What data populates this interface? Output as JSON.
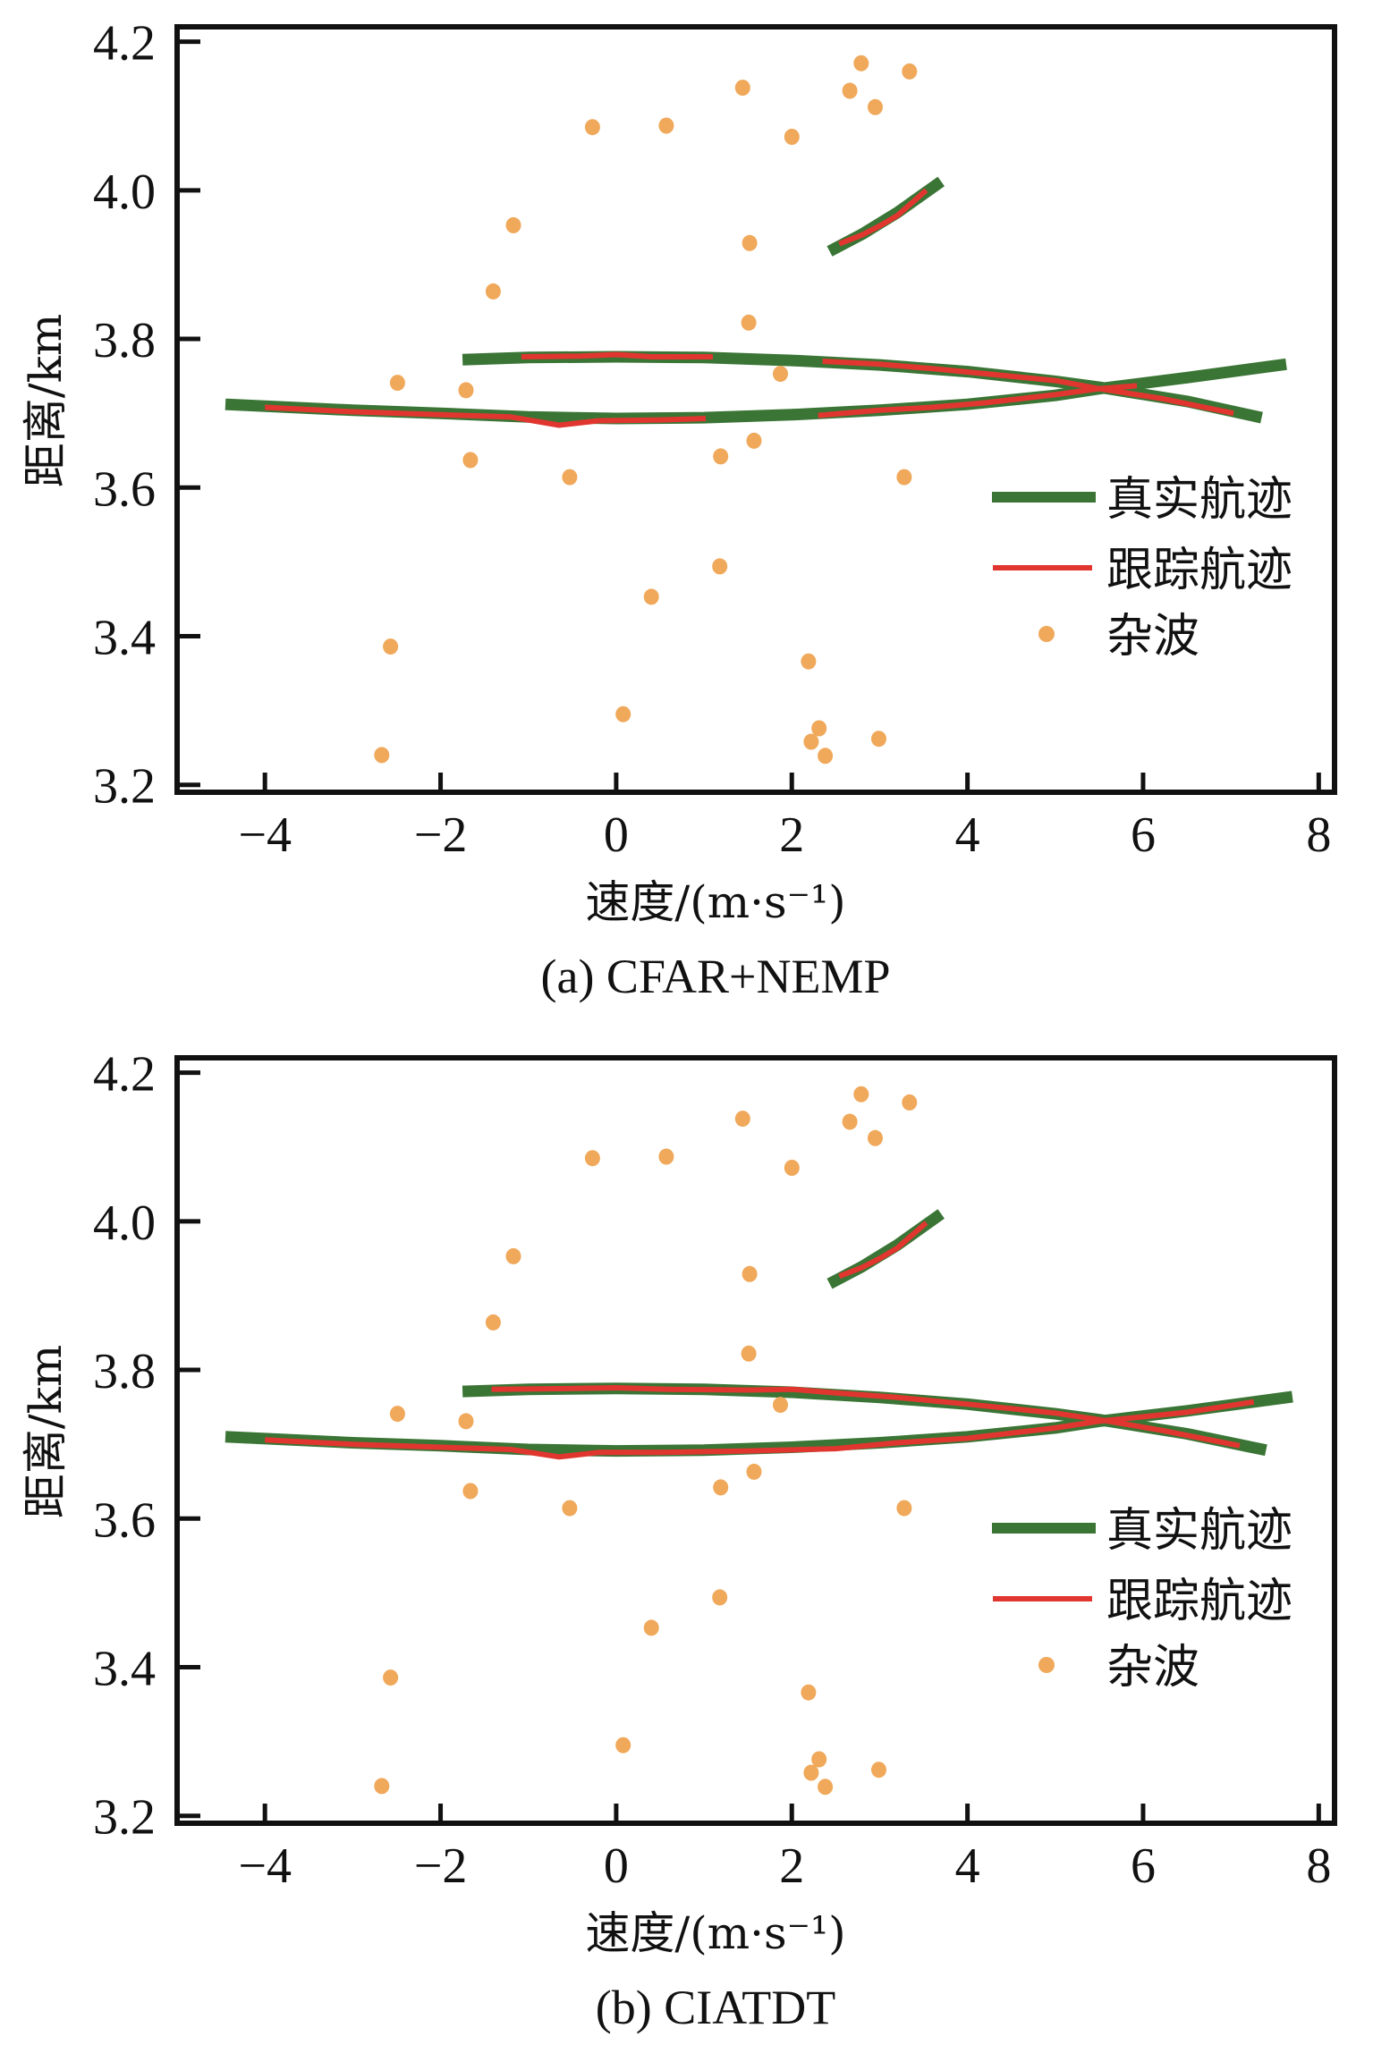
{
  "colors": {
    "true_track": "#3a7535",
    "tracked_track": "#e0362f",
    "clutter": "#f0a85a",
    "axis": "#111111"
  },
  "chart_data": [
    {
      "type": "scatter",
      "panel": "a",
      "caption": "(a) CFAR+NEMP",
      "xlabel": "速度/(m·s⁻¹)",
      "ylabel": "距离/km",
      "xlim": [
        -5.0,
        8.18
      ],
      "ylim": [
        3.19,
        4.22
      ],
      "xticks": [
        -4,
        -2,
        0,
        2,
        4,
        6,
        8
      ],
      "xtick_labels": [
        "−4",
        "−2",
        "0",
        "2",
        "4",
        "6",
        "8"
      ],
      "yticks": [
        3.2,
        3.4,
        3.6,
        3.8,
        4.0,
        4.2
      ],
      "ytick_labels": [
        "3.2",
        "3.4",
        "3.6",
        "3.8",
        "4.0",
        "4.2"
      ],
      "grid": false,
      "legend": {
        "position": "center-right",
        "entries": [
          {
            "label": "真实航迹",
            "kind": "true_track"
          },
          {
            "label": "跟踪航迹",
            "kind": "tracked_track"
          },
          {
            "label": "杂波",
            "kind": "clutter"
          }
        ]
      },
      "series": [
        {
          "name": "真实航迹",
          "kind": "true_track",
          "segments": [
            {
              "x": [
                -4.45,
                -3,
                -2,
                -1,
                0,
                1,
                2,
                3,
                4,
                5,
                5.5,
                6.5,
                7.63
              ],
              "y": [
                3.712,
                3.704,
                3.7,
                3.695,
                3.693,
                3.694,
                3.698,
                3.704,
                3.712,
                3.724,
                3.733,
                3.748,
                3.766
              ]
            },
            {
              "x": [
                -1.75,
                -1,
                0,
                1,
                2,
                3,
                4,
                5,
                5.5,
                6.5,
                7.35
              ],
              "y": [
                3.772,
                3.775,
                3.776,
                3.775,
                3.771,
                3.765,
                3.756,
                3.743,
                3.735,
                3.716,
                3.694
              ]
            },
            {
              "x": [
                2.43,
                2.8,
                3.2,
                3.7
              ],
              "y": [
                3.918,
                3.941,
                3.97,
                4.012
              ]
            }
          ]
        },
        {
          "name": "跟踪航迹",
          "kind": "tracked_track",
          "segments": [
            {
              "x": [
                -4.0,
                -3,
                -2,
                -1.2,
                -0.65,
                -0.2,
                0.5,
                1.02
              ],
              "y": [
                3.708,
                3.702,
                3.698,
                3.695,
                3.684,
                3.69,
                3.691,
                3.693
              ]
            },
            {
              "x": [
                2.3,
                3,
                3.6,
                4.2,
                5,
                5.5,
                5.93
              ],
              "y": [
                3.697,
                3.704,
                3.708,
                3.714,
                3.725,
                3.733,
                3.737
              ]
            },
            {
              "x": [
                -1.08,
                -0.4,
                0.0,
                0.4,
                1.1
              ],
              "y": [
                3.776,
                3.777,
                3.779,
                3.776,
                3.776
              ]
            },
            {
              "x": [
                2.35,
                3,
                3.6,
                4.3,
                5,
                5.5,
                6.2,
                7.03
              ],
              "y": [
                3.77,
                3.766,
                3.76,
                3.752,
                3.744,
                3.733,
                3.72,
                3.7
              ]
            },
            {
              "x": [
                2.54,
                2.8,
                3.0,
                3.2,
                3.53
              ],
              "y": [
                3.928,
                3.94,
                3.952,
                3.966,
                4.0
              ]
            }
          ]
        },
        {
          "name": "杂波",
          "kind": "clutter",
          "x": [
            -0.27,
            0.57,
            1.44,
            2.79,
            3.34,
            2.66,
            2.95,
            2.0,
            -1.17,
            1.52,
            -1.4,
            1.51,
            -2.49,
            -1.71,
            1.87,
            -1.66,
            -0.53,
            1.19,
            1.57,
            3.28,
            1.18,
            0.4,
            -2.57,
            2.19,
            0.08,
            2.31,
            2.22,
            2.99,
            2.38,
            -2.67
          ],
          "y": [
            4.085,
            4.087,
            4.138,
            4.171,
            4.16,
            4.134,
            4.112,
            4.072,
            3.953,
            3.929,
            3.864,
            3.822,
            3.741,
            3.731,
            3.753,
            3.637,
            3.614,
            3.642,
            3.663,
            3.614,
            3.494,
            3.453,
            3.386,
            3.366,
            3.295,
            3.276,
            3.258,
            3.262,
            3.239,
            3.24
          ]
        }
      ]
    },
    {
      "type": "scatter",
      "panel": "b",
      "caption": "(b) CIATDT",
      "xlabel": "速度/(m·s⁻¹)",
      "ylabel": "距离/km",
      "xlim": [
        -5.0,
        8.18
      ],
      "ylim": [
        3.19,
        4.22
      ],
      "xticks": [
        -4,
        -2,
        0,
        2,
        4,
        6,
        8
      ],
      "xtick_labels": [
        "−4",
        "−2",
        "0",
        "2",
        "4",
        "6",
        "8"
      ],
      "yticks": [
        3.2,
        3.4,
        3.6,
        3.8,
        4.0,
        4.2
      ],
      "ytick_labels": [
        "3.2",
        "3.4",
        "3.6",
        "3.8",
        "4.0",
        "4.2"
      ],
      "grid": false,
      "legend": {
        "position": "center-right",
        "entries": [
          {
            "label": "真实航迹",
            "kind": "true_track"
          },
          {
            "label": "跟踪航迹",
            "kind": "tracked_track"
          },
          {
            "label": "杂波",
            "kind": "clutter"
          }
        ]
      },
      "series": [
        {
          "name": "真实航迹",
          "kind": "true_track",
          "segments": [
            {
              "x": [
                -4.45,
                -3,
                -2,
                -1,
                0,
                1,
                2,
                3,
                4,
                5,
                5.5,
                6.5,
                7.7
              ],
              "y": [
                3.71,
                3.702,
                3.698,
                3.693,
                3.691,
                3.692,
                3.696,
                3.702,
                3.71,
                3.722,
                3.731,
                3.745,
                3.764
              ]
            },
            {
              "x": [
                -1.75,
                -1,
                0,
                1,
                2,
                3,
                4,
                5,
                5.5,
                6.5,
                7.4
              ],
              "y": [
                3.771,
                3.774,
                3.775,
                3.774,
                3.77,
                3.763,
                3.754,
                3.741,
                3.733,
                3.714,
                3.692
              ]
            },
            {
              "x": [
                2.43,
                2.8,
                3.2,
                3.7
              ],
              "y": [
                3.916,
                3.939,
                3.968,
                4.01
              ]
            }
          ]
        },
        {
          "name": "跟踪航迹",
          "kind": "tracked_track",
          "segments": [
            {
              "x": [
                -4.0,
                -3,
                -2,
                -1.2,
                -0.65,
                -0.2,
                0.5,
                1.5,
                2.5,
                3.2,
                4,
                5,
                5.5,
                6.5,
                7.26
              ],
              "y": [
                3.706,
                3.7,
                3.696,
                3.693,
                3.683,
                3.689,
                3.689,
                3.691,
                3.694,
                3.702,
                3.708,
                3.722,
                3.731,
                3.743,
                3.757
              ]
            },
            {
              "x": [
                -1.42,
                -0.5,
                0.0,
                0.6,
                1.5,
                2.0,
                2.5,
                3.2,
                4,
                5,
                5.5,
                6.2,
                7.1
              ],
              "y": [
                3.774,
                3.775,
                3.776,
                3.774,
                3.773,
                3.774,
                3.769,
                3.763,
                3.754,
                3.742,
                3.733,
                3.719,
                3.698
              ]
            },
            {
              "x": [
                2.54,
                2.8,
                3.0,
                3.2,
                3.53
              ],
              "y": [
                3.926,
                3.938,
                3.95,
                3.964,
                3.998
              ]
            }
          ]
        },
        {
          "name": "杂波",
          "kind": "clutter",
          "x": [
            -0.27,
            0.57,
            1.44,
            2.79,
            3.34,
            2.66,
            2.95,
            2.0,
            -1.17,
            1.52,
            -1.4,
            1.51,
            -2.49,
            -1.71,
            1.87,
            -1.66,
            -0.53,
            1.19,
            1.57,
            3.28,
            1.18,
            0.4,
            -2.57,
            2.19,
            0.08,
            2.31,
            2.22,
            2.99,
            2.38,
            -2.67
          ],
          "y": [
            4.085,
            4.087,
            4.138,
            4.171,
            4.16,
            4.134,
            4.112,
            4.072,
            3.953,
            3.929,
            3.864,
            3.822,
            3.741,
            3.731,
            3.753,
            3.637,
            3.614,
            3.642,
            3.663,
            3.614,
            3.494,
            3.453,
            3.386,
            3.366,
            3.295,
            3.276,
            3.258,
            3.262,
            3.239,
            3.24
          ]
        }
      ]
    }
  ]
}
